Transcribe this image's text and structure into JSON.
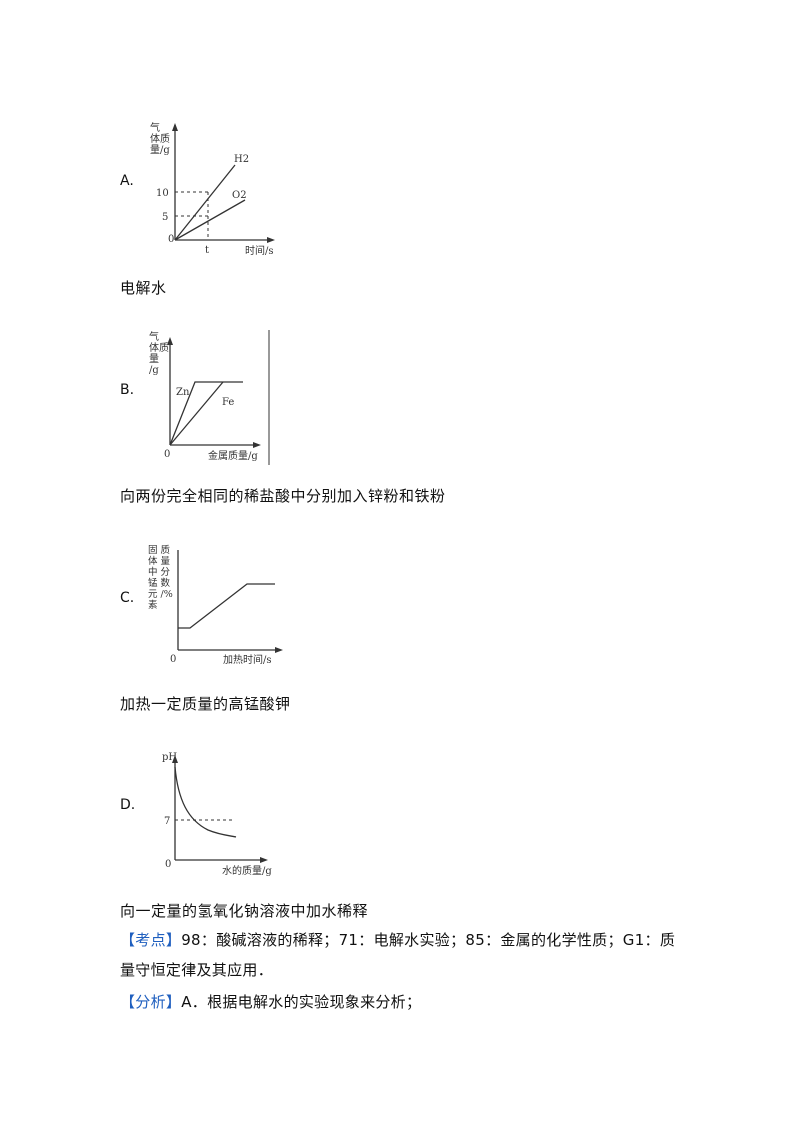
{
  "options": [
    {
      "letter": "A.",
      "caption": "电解水",
      "ylabel": [
        "气",
        "体质",
        "量/g"
      ],
      "xlabel": "时间/s",
      "origin": "0",
      "ticks_y": [
        "10",
        "5"
      ],
      "tick_x": "t",
      "series": [
        {
          "name": "H2"
        },
        {
          "name": "O2"
        }
      ]
    },
    {
      "letter": "B.",
      "caption": "向两份完全相同的稀盐酸中分别加入锌粉和铁粉",
      "ylabel": [
        "气",
        "体质",
        "量",
        "/g"
      ],
      "xlabel": "金属质量/g",
      "origin": "0",
      "series": [
        {
          "name": "Zn"
        },
        {
          "name": "Fe"
        }
      ]
    },
    {
      "letter": "C.",
      "caption": "加热一定质量的高锰酸钾",
      "ylabel": [
        "固 质",
        "体 量",
        "中 分",
        "锰 数",
        "元 /%",
        "素"
      ],
      "xlabel": "加热时间/s",
      "origin": "0"
    },
    {
      "letter": "D.",
      "caption": "向一定量的氢氧化钠溶液中加水稀释",
      "ylabel": [
        "pH"
      ],
      "xlabel": "水的质量/g",
      "origin": "0",
      "tick_y": "7"
    }
  ],
  "analysis": {
    "kaodian_tag": "【考点】",
    "kaodian_text": "98：酸碱溶液的稀释；71：电解水实验；85：金属的化学性质；G1：质量守恒定律及其应用．",
    "fenxi_tag": "【分析】",
    "fenxi_text": "A．根据电解水的实验现象来分析；"
  },
  "colors": {
    "tag_blue": "#1f5fbf"
  }
}
